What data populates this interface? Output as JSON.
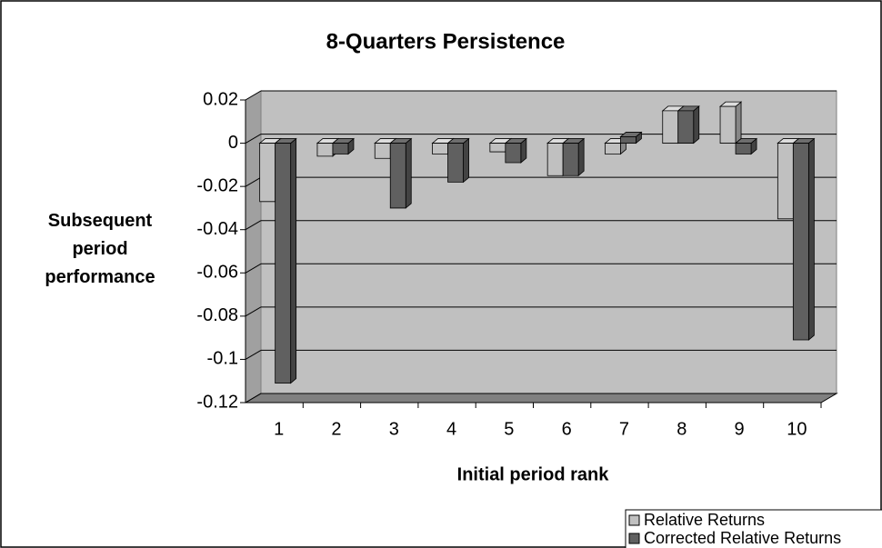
{
  "chart_data": {
    "type": "bar",
    "title": "8-Quarters Persistence",
    "x_label": "Initial period rank",
    "y_label": "Subsequent period performance",
    "categories": [
      "1",
      "2",
      "3",
      "4",
      "5",
      "6",
      "7",
      "8",
      "9",
      "10"
    ],
    "series": [
      {
        "name": "Relative Returns",
        "color": "#c0c0c0",
        "values": [
          -0.027,
          -0.006,
          -0.007,
          -0.005,
          -0.004,
          -0.015,
          -0.005,
          0.015,
          0.017,
          -0.035
        ]
      },
      {
        "name": "Corrected Relative Returns",
        "color": "#606060",
        "values": [
          -0.111,
          -0.005,
          -0.03,
          -0.018,
          -0.009,
          -0.015,
          0.003,
          0.015,
          -0.005,
          -0.091
        ]
      }
    ],
    "ylim": [
      -0.12,
      0.02
    ],
    "yticks": [
      0.02,
      0,
      -0.02,
      -0.04,
      -0.06,
      -0.08,
      -0.1,
      -0.12
    ],
    "grid": true,
    "legend": "bottom-right"
  }
}
